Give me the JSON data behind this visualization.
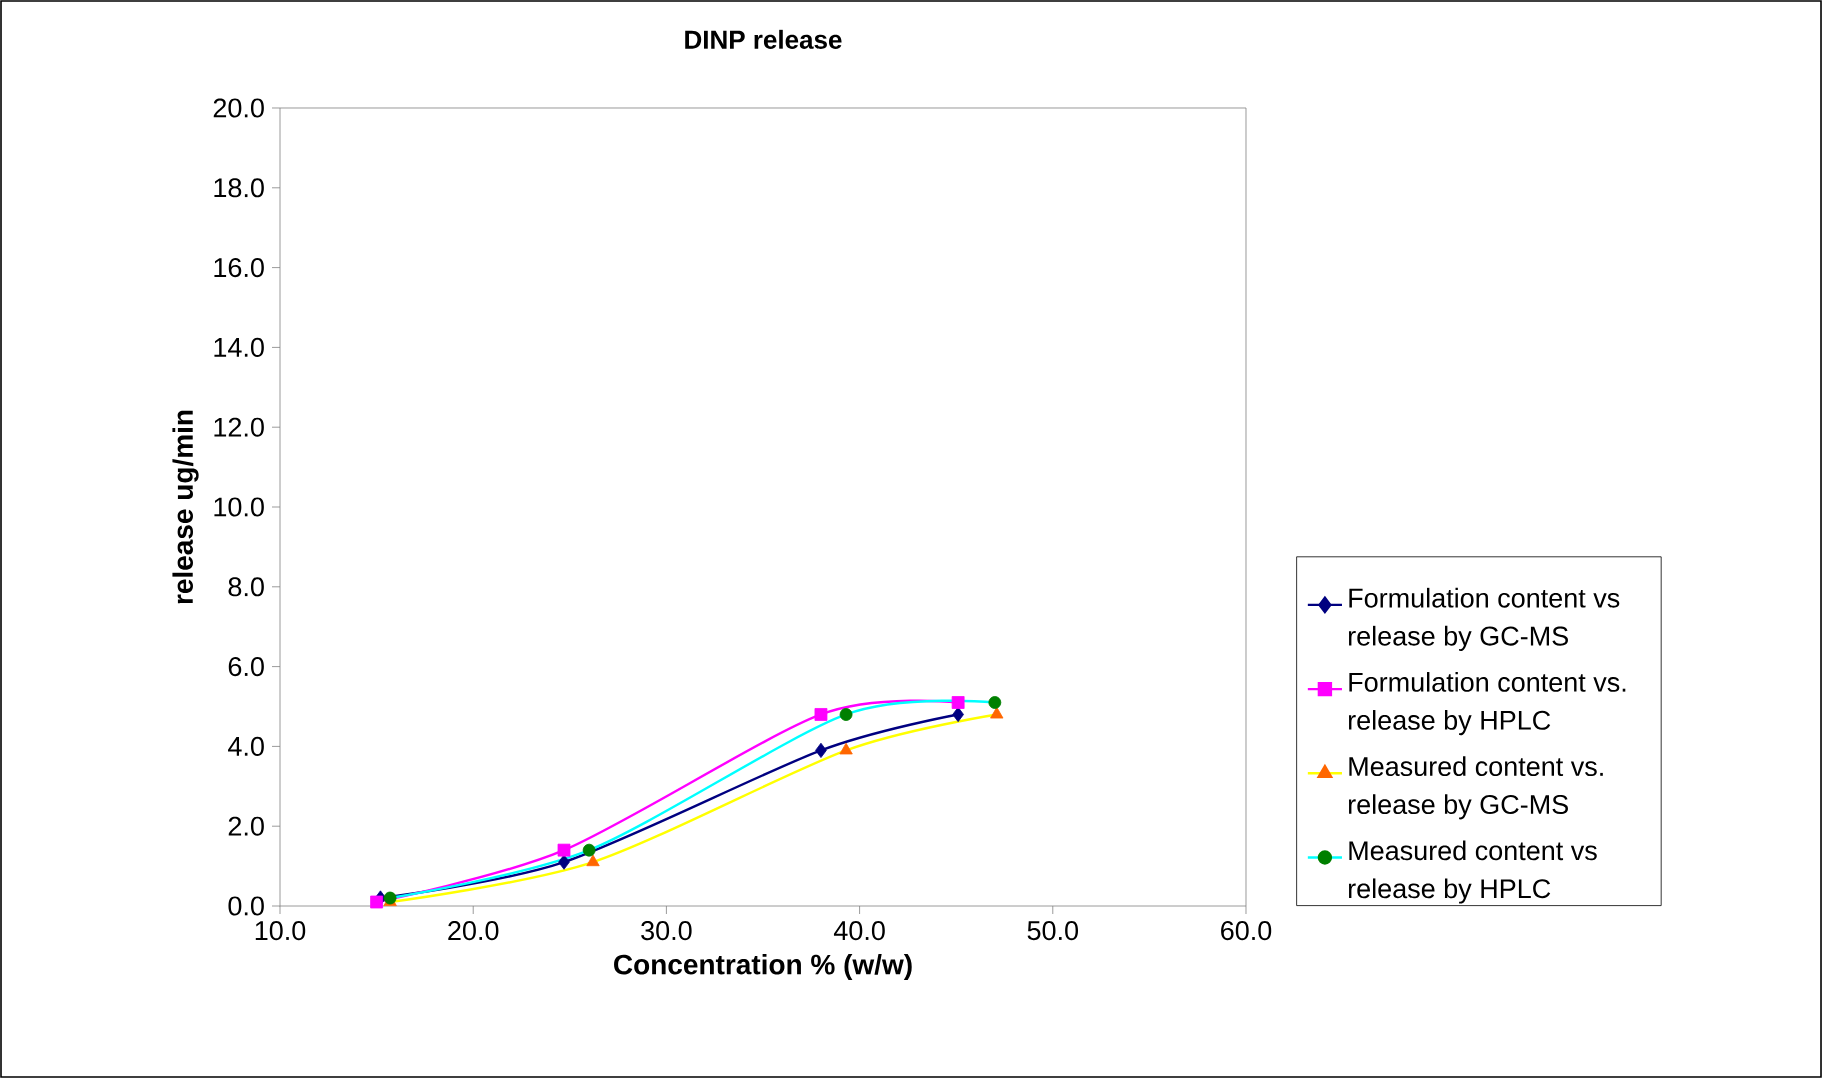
{
  "chart_data": {
    "type": "line",
    "title": "DINP release",
    "xlabel": "Concentration % (w/w)",
    "ylabel": "release ug/min",
    "xlim": [
      10,
      60
    ],
    "xticks": [
      {
        "value": 10,
        "label": "10.0"
      },
      {
        "value": 20,
        "label": "20.0"
      },
      {
        "value": 30,
        "label": "30.0"
      },
      {
        "value": 40,
        "label": "40.0"
      },
      {
        "value": 50,
        "label": "50.0"
      },
      {
        "value": 60,
        "label": "60.0"
      }
    ],
    "ylim": [
      0,
      20
    ],
    "yticks": [
      {
        "value": 0,
        "label": "0.0"
      },
      {
        "value": 2,
        "label": "2.0"
      },
      {
        "value": 4,
        "label": "4.0"
      },
      {
        "value": 6,
        "label": "6.0"
      },
      {
        "value": 8,
        "label": "8.0"
      },
      {
        "value": 10,
        "label": "10.0"
      },
      {
        "value": 12,
        "label": "12.0"
      },
      {
        "value": 14,
        "label": "14.0"
      },
      {
        "value": 16,
        "label": "16.0"
      },
      {
        "value": 18,
        "label": "18.0"
      },
      {
        "value": 20,
        "label": "20.0"
      }
    ],
    "grid": false,
    "legend": "right",
    "line_style": "solid",
    "series": [
      {
        "name": "Formulation content vs release by GC-MS",
        "color": "#000080",
        "marker": "diamond",
        "x": [
          15.2,
          24.7,
          38.0,
          45.1
        ],
        "values": [
          0.2,
          1.1,
          3.9,
          4.8
        ]
      },
      {
        "name": "Formulation content vs. release by HPLC",
        "color": "#ff00ff",
        "marker": "square",
        "x": [
          15.0,
          24.7,
          38.0,
          45.1
        ],
        "values": [
          0.1,
          1.4,
          4.8,
          5.1
        ]
      },
      {
        "name": "Measured content vs. release by GC-MS",
        "color": "#ffff00",
        "colors": [
          "#ff6600",
          "#ff6600",
          "#ff6600",
          "#ff6600"
        ],
        "marker": "triangle",
        "x": [
          15.7,
          26.2,
          39.3,
          47.1
        ],
        "values": [
          0.1,
          1.1,
          3.9,
          4.8
        ]
      },
      {
        "name": "Measured content vs release by HPLC",
        "color": "#00ffff",
        "colors": [
          "#008000",
          "#008000",
          "#008000",
          "#008000"
        ],
        "marker": "circle",
        "x": [
          15.7,
          26.0,
          39.3,
          47.0
        ],
        "values": [
          0.2,
          1.4,
          4.8,
          5.1
        ]
      }
    ]
  }
}
